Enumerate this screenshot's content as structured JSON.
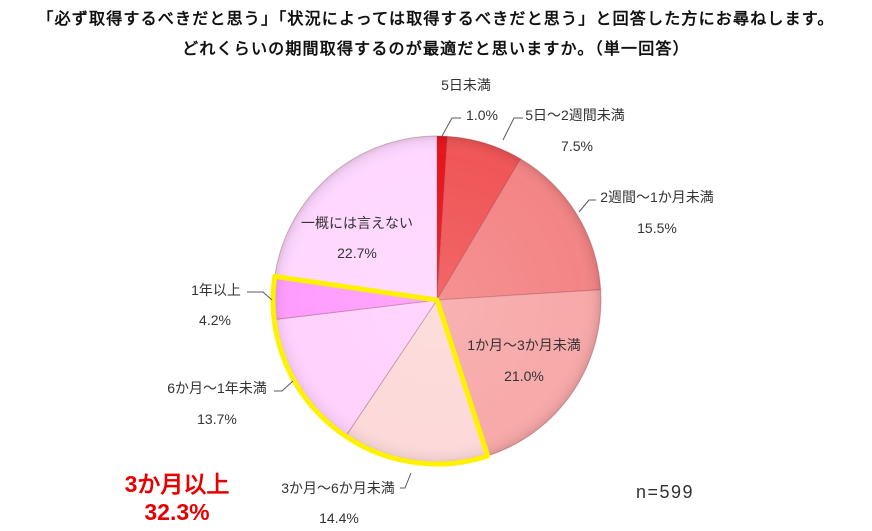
{
  "chart_data": {
    "type": "pie",
    "title": [
      "「必ず取得するべきだと思う」「状況によっては取得するべきだと思う」と回答した方にお尋ねします。",
      "どれくらいの期間取得するのが最適だと思いますか。（単一回答）"
    ],
    "categories": [
      "5日未満",
      "5日～2週間未満",
      "2週間～1か月未満",
      "1か月～3か月未満",
      "3か月～6か月未満",
      "6か月～1年未満",
      "1年以上",
      "一概には言えない"
    ],
    "values": [
      1.0,
      7.5,
      15.5,
      21.0,
      14.4,
      13.7,
      4.2,
      22.7
    ],
    "colors": [
      "#E8141B",
      "#F05657",
      "#F48586",
      "#F8A9A9",
      "#FDD9D9",
      "#FFD1FD",
      "#FF9DFF",
      "#FFD7FF"
    ],
    "sample_size": "n=599",
    "highlight": {
      "label": "3か月以上",
      "value": "32.3%",
      "slices": [
        4,
        5,
        6
      ],
      "outline_color": "#FFF200",
      "text_color": "#E60000"
    }
  }
}
